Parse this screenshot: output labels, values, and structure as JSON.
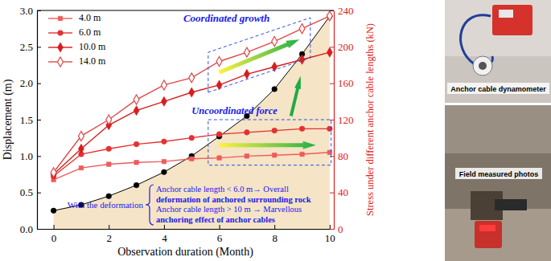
{
  "chart_data": {
    "type": "line",
    "xlabel": "Observation duration (Month)",
    "ylabel": "Displacement (m)",
    "y2label": "Stress under different anchor cable lengths (kN)",
    "x": [
      0,
      1,
      2,
      3,
      4,
      5,
      6,
      7,
      8,
      9,
      10
    ],
    "xlim": [
      -0.6,
      10.15
    ],
    "xticks": [
      0,
      2,
      4,
      6,
      8,
      10
    ],
    "ylim": [
      0,
      3
    ],
    "yticks": [
      {
        "value": 0,
        "label": "0.0"
      },
      {
        "value": 0.5,
        "label": "0.5"
      },
      {
        "value": 1,
        "label": "1.0"
      },
      {
        "value": 1.5,
        "label": "1.5"
      },
      {
        "value": 2,
        "label": "2.0"
      },
      {
        "value": 2.5,
        "label": "2.5"
      },
      {
        "value": 3,
        "label": "3.0"
      }
    ],
    "y2lim": [
      0,
      240
    ],
    "y2ticks": [
      0,
      40,
      80,
      120,
      160,
      200,
      240
    ],
    "legend": "upper left",
    "series": [
      {
        "type": "area",
        "color": "#000000",
        "marker": "circle",
        "values": [
          0.25,
          0.33,
          0.45,
          0.6,
          0.78,
          1.0,
          1.27,
          1.55,
          1.92,
          2.4,
          2.92
        ]
      },
      {
        "name": "4.0 m",
        "type": "line",
        "axis": "y2",
        "color": "#ee5b5b",
        "marker": "square",
        "values": [
          54,
          67,
          71,
          73,
          74,
          77,
          78,
          80,
          81,
          82,
          84
        ]
      },
      {
        "name": "6.0 m",
        "type": "line",
        "axis": "y2",
        "color": "#e53131",
        "marker": "circle",
        "values": [
          58,
          82,
          88,
          93,
          96,
          100,
          104,
          106,
          108,
          110,
          110
        ]
      },
      {
        "name": "10.0 m",
        "type": "line",
        "axis": "y2",
        "color": "#d91c1c",
        "marker": "diamond",
        "values": [
          60,
          88,
          114,
          130,
          140,
          150,
          158,
          170,
          178,
          186,
          194
        ]
      },
      {
        "name": "14.0 m",
        "type": "line",
        "axis": "y2",
        "color": "#e04848",
        "marker": "open-diamond",
        "values": [
          62,
          102,
          120,
          142,
          158,
          166,
          184,
          194,
          206,
          220,
          234
        ]
      }
    ],
    "annotations": [
      "Coordinated growth",
      "Uncoordinated force",
      "With the deformation",
      "Anchor cable length < 6.0 m→ Overall",
      "deformation of anchored surrounding rock",
      "Anchor cable length > 10 m → Marvellous",
      "anchoring effect of anchor cables",
      "Anchor cable dynamometer",
      "Field measured photos"
    ]
  }
}
